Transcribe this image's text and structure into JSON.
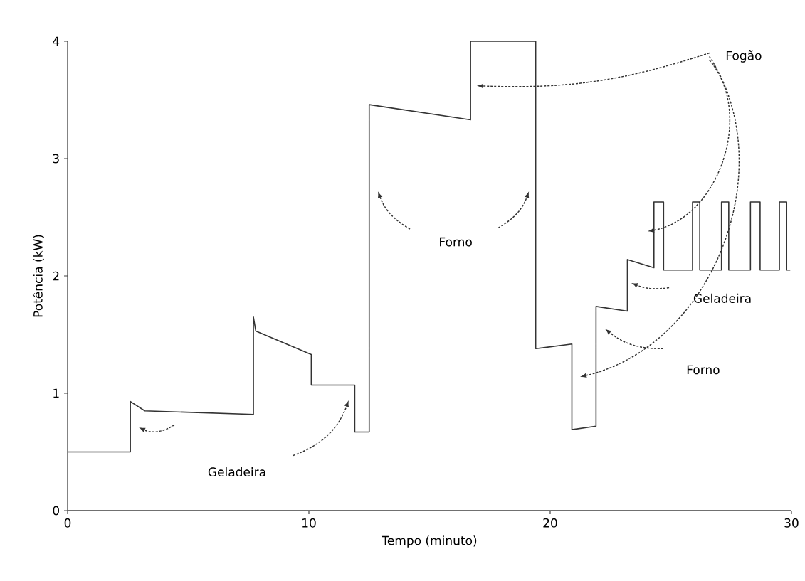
{
  "chart_data": {
    "type": "line",
    "xlabel": "Tempo (minuto)",
    "ylabel": "Potência (kW)",
    "xlim": [
      0,
      30
    ],
    "ylim": [
      0,
      4
    ],
    "xticks": [
      0,
      10,
      20,
      30
    ],
    "yticks": [
      0,
      1,
      2,
      3,
      4
    ],
    "grid": false,
    "marker": "none",
    "line_style": "solid",
    "series": [
      {
        "color": "#333333",
        "x": [
          0,
          2.6,
          2.6,
          3.2,
          7.7,
          7.7,
          7.8,
          10.1,
          10.1,
          11.9,
          11.9,
          12.5,
          12.5,
          16.7,
          16.7,
          19.4,
          19.4,
          20.9,
          20.9,
          21.9,
          21.9,
          23.2,
          23.2,
          24.3,
          24.3,
          24.7,
          24.7,
          25.9,
          25.9,
          26.2,
          26.2,
          27.1,
          27.1,
          27.4,
          27.4,
          28.3,
          28.3,
          28.7,
          28.7,
          29.5,
          29.5,
          29.8,
          29.8,
          29.95
        ],
        "values": [
          0.5,
          0.5,
          0.93,
          0.85,
          0.82,
          1.65,
          1.53,
          1.33,
          1.07,
          1.07,
          0.67,
          0.67,
          3.46,
          3.33,
          4.0,
          4.0,
          1.38,
          1.42,
          0.69,
          0.72,
          1.74,
          1.7,
          2.14,
          2.07,
          2.63,
          2.63,
          2.05,
          2.05,
          2.63,
          2.63,
          2.05,
          2.05,
          2.63,
          2.63,
          2.05,
          2.05,
          2.63,
          2.63,
          2.05,
          2.05,
          2.63,
          2.63,
          2.05,
          2.05
        ]
      }
    ],
    "annotations": [
      "Geladeira",
      "Forno",
      "Fogão",
      "Geladeira",
      "Forno"
    ]
  }
}
